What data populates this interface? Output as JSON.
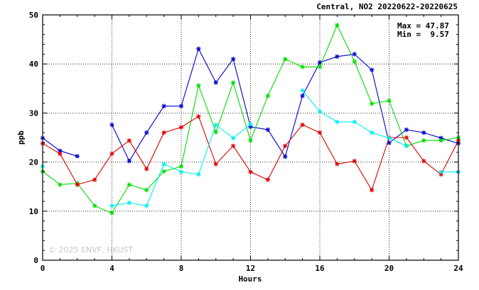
{
  "chart_data": {
    "type": "line",
    "title": "Central, NO2 20220622-20220625",
    "xlabel": "Hours",
    "ylabel": "ppb",
    "xlim": [
      0,
      24
    ],
    "ylim": [
      0,
      50
    ],
    "xticks": [
      0,
      4,
      8,
      12,
      16,
      20,
      24
    ],
    "yticks": [
      0,
      10,
      20,
      30,
      40,
      50
    ],
    "grid": true,
    "stats": {
      "max": "Max = 47.87",
      "min": "Min =  9.57"
    },
    "watermark": "© 2025  ENVF, HKUST",
    "x": [
      0,
      1,
      2,
      3,
      4,
      5,
      6,
      7,
      8,
      9,
      10,
      11,
      12,
      13,
      14,
      15,
      16,
      17,
      18,
      19,
      20,
      21,
      22,
      23,
      24
    ],
    "series": [
      {
        "color": "#0000cc",
        "values": [
          24.9,
          22.3,
          21.2,
          null,
          27.6,
          20.2,
          26.0,
          31.4,
          31.4,
          43.1,
          36.2,
          41.0,
          27.2,
          26.6,
          21.1,
          33.5,
          40.3,
          41.5,
          42.0,
          38.8,
          23.9,
          26.6,
          26.0,
          24.9,
          23.8
        ]
      },
      {
        "color": "#00dd00",
        "values": [
          18.1,
          15.4,
          15.7,
          11.1,
          9.6,
          15.4,
          14.3,
          18.1,
          19.1,
          35.6,
          26.1,
          36.2,
          24.4,
          33.5,
          41.0,
          39.4,
          39.4,
          47.9,
          40.5,
          31.9,
          32.5,
          23.3,
          24.4,
          24.4,
          25.0
        ]
      },
      {
        "color": "#dd0000",
        "values": [
          23.8,
          21.7,
          15.4,
          16.4,
          21.7,
          24.4,
          18.6,
          26.0,
          27.1,
          29.3,
          19.6,
          23.3,
          18.0,
          16.4,
          23.3,
          27.6,
          26.0,
          19.6,
          20.2,
          14.3,
          25.0,
          25.0,
          20.2,
          17.5,
          24.4
        ]
      },
      {
        "color": "#00eeee",
        "values": [
          19.1,
          null,
          null,
          null,
          11.1,
          11.7,
          11.1,
          19.6,
          18.0,
          17.5,
          27.6,
          24.9,
          27.7,
          null,
          null,
          34.6,
          30.3,
          28.2,
          28.2,
          26.0,
          24.9,
          23.3,
          null,
          18.0,
          18.0
        ]
      }
    ]
  }
}
